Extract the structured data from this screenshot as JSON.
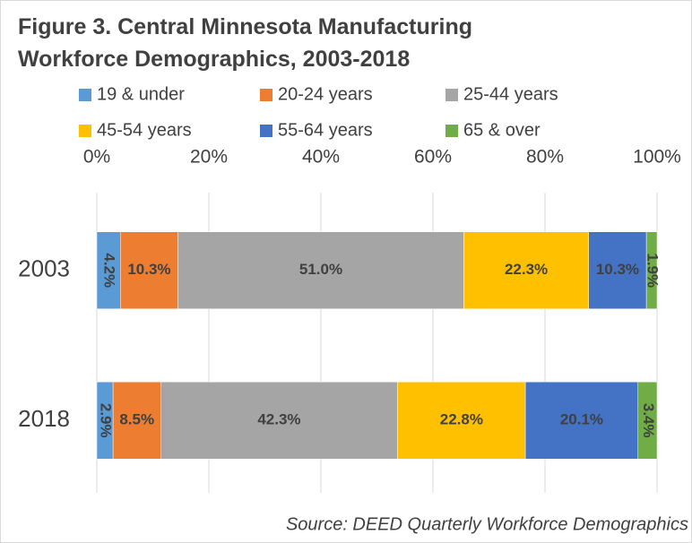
{
  "chart_data": {
    "type": "stacked_barh",
    "title": "Figure 3. Central Minnesota Manufacturing Workforce Demographics, 2003-2018",
    "source": "Source: DEED Quarterly Workforce Demographics",
    "categories": [
      "2003",
      "2018"
    ],
    "series": [
      {
        "name": "19 & under",
        "color": "#5b9bd5",
        "values": [
          4.2,
          2.9
        ],
        "value_labels": [
          "4.2%",
          "2.9%"
        ]
      },
      {
        "name": "20-24 years",
        "color": "#ed7d31",
        "values": [
          10.3,
          8.5
        ],
        "value_labels": [
          "10.3%",
          "8.5%"
        ]
      },
      {
        "name": "25-44 years",
        "color": "#a5a5a5",
        "values": [
          51.0,
          42.3
        ],
        "value_labels": [
          "51.0%",
          "42.3%"
        ]
      },
      {
        "name": "45-54 years",
        "color": "#ffc000",
        "values": [
          22.3,
          22.8
        ],
        "value_labels": [
          "22.3%",
          "22.8%"
        ]
      },
      {
        "name": "55-64 years",
        "color": "#4472c4",
        "values": [
          10.3,
          20.1
        ],
        "value_labels": [
          "10.3%",
          "20.1%"
        ]
      },
      {
        "name": "65 & over",
        "color": "#70ad47",
        "values": [
          1.9,
          3.4
        ],
        "value_labels": [
          "1.9%",
          "3.4%"
        ]
      }
    ],
    "xlim": [
      0,
      100
    ],
    "xticks": [
      {
        "value": 0,
        "label": "0%"
      },
      {
        "value": 20,
        "label": "20%"
      },
      {
        "value": 40,
        "label": "40%"
      },
      {
        "value": 60,
        "label": "60%"
      },
      {
        "value": 80,
        "label": "80%"
      },
      {
        "value": 100,
        "label": "100%"
      }
    ],
    "grid": true,
    "legend": "top"
  }
}
